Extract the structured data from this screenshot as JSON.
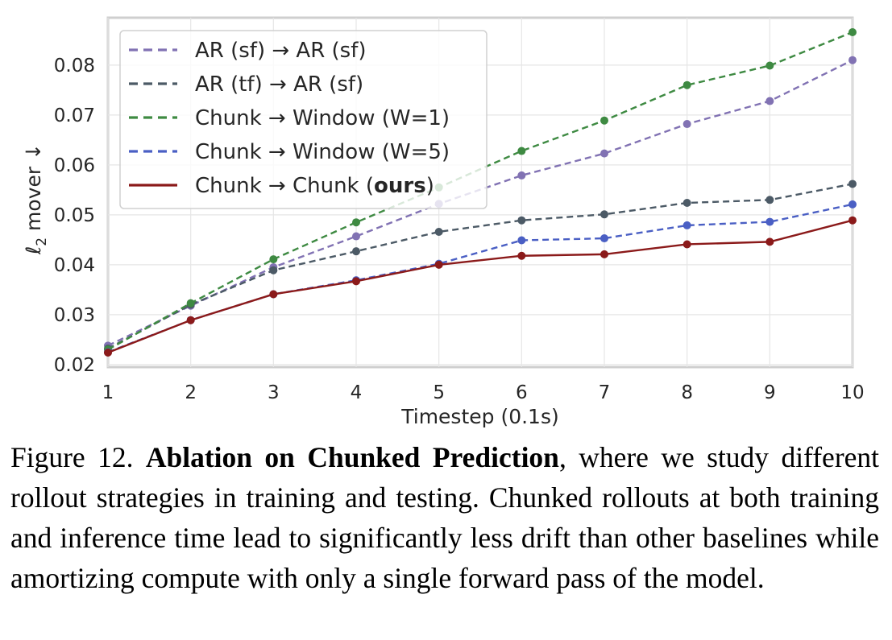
{
  "chart_data": {
    "type": "line",
    "xlabel": "Timestep (0.1s)",
    "ylabel_main": "ℓ",
    "ylabel_sub": "2",
    "ylabel_rest": " mover ↓",
    "x": [
      1,
      2,
      3,
      4,
      5,
      6,
      7,
      8,
      9,
      10
    ],
    "xlim": [
      1,
      10
    ],
    "ylim": [
      0.0195,
      0.0895
    ],
    "xticks": [
      "1",
      "2",
      "3",
      "4",
      "5",
      "6",
      "7",
      "8",
      "9",
      "10"
    ],
    "yticks": [
      "0.02",
      "0.03",
      "0.04",
      "0.05",
      "0.06",
      "0.07",
      "0.08"
    ],
    "ytick_values": [
      0.02,
      0.03,
      0.04,
      0.05,
      0.06,
      0.07,
      0.08
    ],
    "grid": true,
    "legend_position": "top-left",
    "series": [
      {
        "name": "AR (sf) → AR (sf)",
        "color": "#8172b3",
        "dashed": true,
        "values": [
          0.0238,
          0.0318,
          0.0395,
          0.0457,
          0.0522,
          0.0579,
          0.0623,
          0.0682,
          0.0728,
          0.081
        ]
      },
      {
        "name": "AR (tf) → AR (sf)",
        "color": "#4c5a66",
        "dashed": true,
        "values": [
          0.0232,
          0.032,
          0.0389,
          0.0427,
          0.0466,
          0.0489,
          0.0501,
          0.0524,
          0.053,
          0.0562
        ]
      },
      {
        "name": "Chunk → Window (W=1)",
        "color": "#3e8a42",
        "dashed": true,
        "values": [
          0.023,
          0.0323,
          0.0411,
          0.0485,
          0.0555,
          0.0628,
          0.0689,
          0.076,
          0.0799,
          0.0866
        ]
      },
      {
        "name": "Chunk → Window (W=5)",
        "color": "#4a5fc4",
        "dashed": true,
        "values": [
          0.0225,
          0.0289,
          0.0341,
          0.0369,
          0.0402,
          0.0449,
          0.0453,
          0.0479,
          0.0486,
          0.0521
        ]
      },
      {
        "name_prefix": "Chunk → Chunk (",
        "name_bold": "ours",
        "name_suffix": ")",
        "color": "#8b1a1a",
        "dashed": false,
        "values": [
          0.0224,
          0.0289,
          0.0341,
          0.0367,
          0.04,
          0.0418,
          0.0421,
          0.0441,
          0.0446,
          0.0489
        ]
      }
    ]
  },
  "caption": {
    "label": "Figure 12. ",
    "bold": "Ablation on Chunked Prediction",
    "text": ", where we study different rollout strategies in training and testing. Chunked rollouts at both training and inference time lead to significantly less drift than other baselines while amortizing compute with only a single forward pass of the model."
  }
}
